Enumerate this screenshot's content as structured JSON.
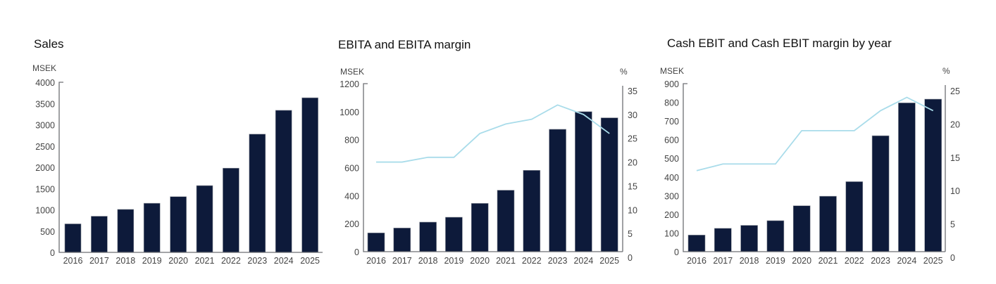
{
  "colors": {
    "bar": "#0d1a3a",
    "line": "#a9dcea",
    "axis": "#6d6f74"
  },
  "chart_data": [
    {
      "type": "bar",
      "title": "Sales",
      "ylabel": "MSEK",
      "categories": [
        "2016",
        "2017",
        "2018",
        "2019",
        "2020",
        "2021",
        "2022",
        "2023",
        "2024",
        "2025"
      ],
      "ylim": [
        0,
        4000
      ],
      "yticks": [
        "0",
        "500",
        "1000",
        "1500",
        "2000",
        "2500",
        "3000",
        "3500",
        "4000"
      ],
      "series": [
        {
          "name": "Sales",
          "type": "bar",
          "values": [
            670,
            850,
            1010,
            1155,
            1310,
            1570,
            1980,
            2780,
            3340,
            3635
          ]
        }
      ],
      "grid": false
    },
    {
      "type": "bar",
      "title": "EBITA and EBITA margin",
      "ylabel": "MSEK",
      "y2label": "%",
      "categories": [
        "2016",
        "2017",
        "2018",
        "2019",
        "2020",
        "2021",
        "2022",
        "2023",
        "2024",
        "2025"
      ],
      "ylim": [
        0,
        1200
      ],
      "yticks": [
        "0",
        "200",
        "400",
        "600",
        "800",
        "1000",
        "1200"
      ],
      "y2lim": [
        0,
        35
      ],
      "y2ticks": [
        "0",
        "5",
        "10",
        "15",
        "20",
        "25",
        "30",
        "35"
      ],
      "series": [
        {
          "name": "EBITA",
          "type": "bar",
          "values": [
            134,
            169,
            211,
            246,
            345,
            439,
            581,
            874,
            1000,
            956
          ]
        },
        {
          "name": "EBITA margin",
          "type": "line",
          "axis": "right",
          "values": [
            20,
            20,
            21,
            21,
            26,
            28,
            29,
            32,
            30,
            26
          ]
        }
      ],
      "grid": false
    },
    {
      "type": "bar",
      "title": "Cash EBIT and Cash EBIT margin by year",
      "ylabel": "MSEK",
      "y2label": "%",
      "categories": [
        "2016",
        "2017",
        "2018",
        "2019",
        "2020",
        "2021",
        "2022",
        "2023",
        "2024",
        "2025"
      ],
      "ylim": [
        0,
        900
      ],
      "yticks": [
        "0",
        "100",
        "200",
        "300",
        "400",
        "500",
        "600",
        "700",
        "800",
        "900"
      ],
      "y2lim": [
        0,
        25
      ],
      "y2ticks": [
        "0",
        "5",
        "10",
        "15",
        "20",
        "25"
      ],
      "series": [
        {
          "name": "Cash EBIT",
          "type": "bar",
          "values": [
            89,
            125,
            141,
            166,
            246,
            297,
            375,
            621,
            797,
            817
          ]
        },
        {
          "name": "Cash EBIT margin",
          "type": "line",
          "axis": "right",
          "values": [
            13,
            14,
            14,
            14,
            19,
            19,
            19,
            22,
            24,
            22
          ]
        }
      ],
      "grid": false
    }
  ]
}
